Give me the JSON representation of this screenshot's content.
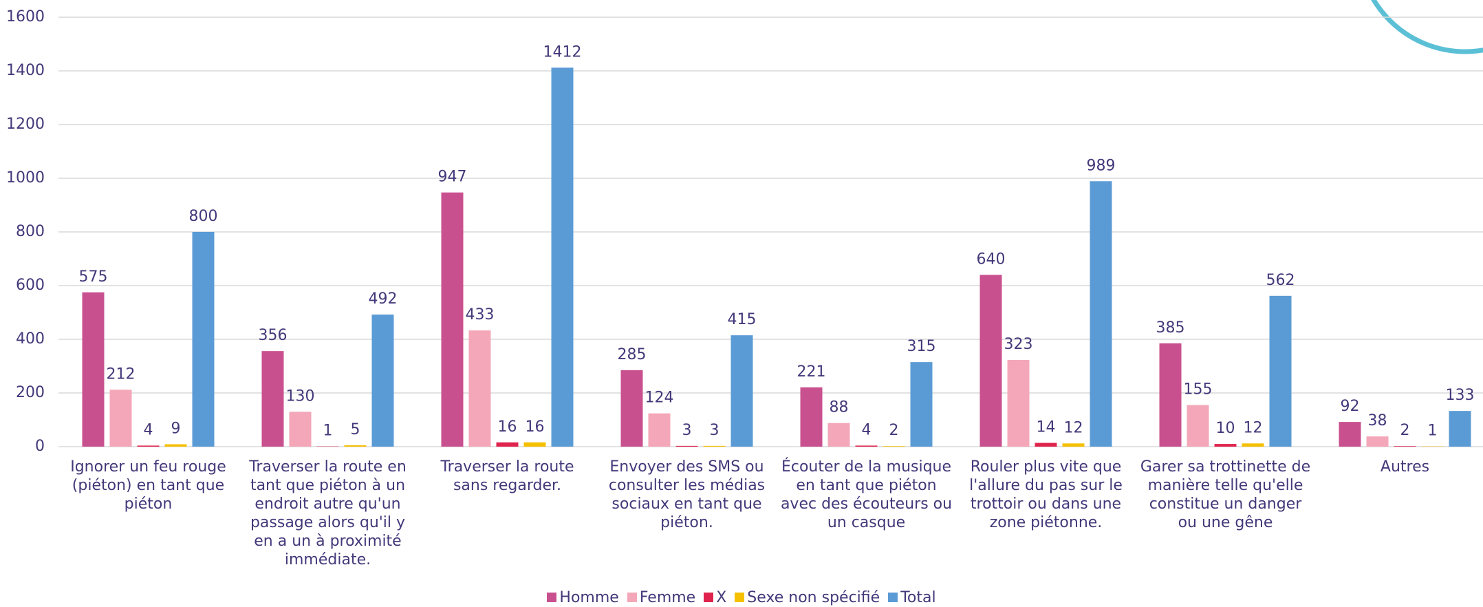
{
  "chart_data": {
    "type": "bar",
    "categories": [
      "Ignorer un feu rouge (piéton) en tant que piéton",
      "Traverser la route en tant que piéton à un endroit autre qu'un passage alors qu'il y en a un à proximité immédiate.",
      "Traverser la route sans regarder.",
      "Envoyer des SMS ou consulter les médias sociaux en tant que piéton.",
      "Écouter de la musique en tant que piéton avec des écouteurs ou un casque",
      "Rouler plus vite que l'allure du pas sur le trottoir ou dans une zone piétonne.",
      "Garer sa trottinette de manière telle qu'elle constitue un danger ou une gêne",
      "Autres"
    ],
    "series": [
      {
        "name": "Homme",
        "color": "#c9508f",
        "values": [
          575,
          356,
          947,
          285,
          221,
          640,
          385,
          92
        ]
      },
      {
        "name": "Femme",
        "color": "#f4a7b9",
        "values": [
          212,
          130,
          433,
          124,
          88,
          323,
          155,
          38
        ]
      },
      {
        "name": "X",
        "color": "#e0234d",
        "values": [
          4,
          1,
          16,
          3,
          4,
          14,
          10,
          2
        ]
      },
      {
        "name": "Sexe non spécifié",
        "color": "#f5c000",
        "values": [
          9,
          5,
          16,
          3,
          2,
          12,
          12,
          1
        ]
      },
      {
        "name": "Total",
        "color": "#5b9bd5",
        "values": [
          800,
          492,
          1412,
          415,
          315,
          989,
          562,
          133
        ]
      }
    ],
    "ylim": [
      0,
      1600
    ],
    "yticks": [
      0,
      200,
      400,
      600,
      800,
      1000,
      1200,
      1400,
      1600
    ],
    "grid": true,
    "legend": "bottom"
  }
}
